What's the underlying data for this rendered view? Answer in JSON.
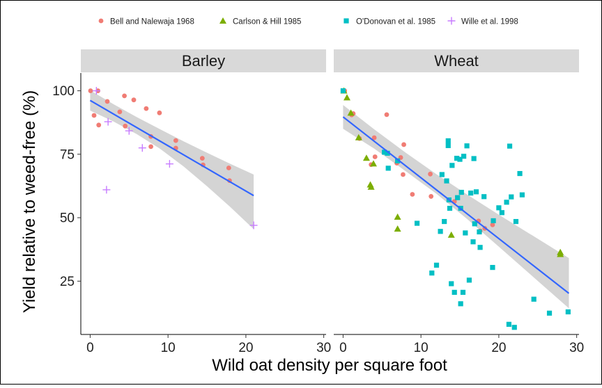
{
  "colors": {
    "bell": "#F07C74",
    "carlson": "#7CAE00",
    "odonovan": "#00BFC4",
    "wille": "#C77CFF",
    "fit_line": "#3366FF",
    "ribbon": "#BDBDBD",
    "strip": "#D9D9D9",
    "border": "#000000"
  },
  "chart_data": {
    "type": "scatter",
    "xlabel": "Wild oat density per square foot",
    "ylabel": "Yield relative to weed-free (%)",
    "xlim": [
      -1.2,
      30.3
    ],
    "ylim": [
      4,
      107
    ],
    "x_ticks": [
      0,
      10,
      20,
      30
    ],
    "y_ticks": [
      25,
      50,
      75,
      100
    ],
    "legend": {
      "placement": "top",
      "entries": [
        {
          "key": "bell",
          "label": "Bell and Nalewaja 1968",
          "marker": "circle"
        },
        {
          "key": "carlson",
          "label": "Carlson & Hill 1985",
          "marker": "triangle"
        },
        {
          "key": "odonovan",
          "label": "O'Donovan et al. 1985",
          "marker": "square"
        },
        {
          "key": "wille",
          "label": "Wille et al. 1998",
          "marker": "plus"
        }
      ]
    },
    "panels": [
      {
        "title": "Barley",
        "fit": {
          "x0": 0,
          "y0": 96.2,
          "x1": 21,
          "y1": 58.7
        },
        "ribbon": {
          "x": [
            0,
            3,
            6,
            9,
            12,
            15,
            18,
            21
          ],
          "lower": [
            92.2,
            87.9,
            82.9,
            77.1,
            70.2,
            62.4,
            54.2,
            45.5
          ],
          "upper": [
            100.2,
            94.7,
            89.6,
            84.8,
            80.1,
            75.6,
            71.2,
            67.0
          ]
        },
        "series": [
          {
            "key": "bell",
            "points": [
              [
                0.05,
                100
              ],
              [
                0.5,
                90.3
              ],
              [
                1.0,
                100
              ],
              [
                1.1,
                86.5
              ],
              [
                2.2,
                95.8
              ],
              [
                3.8,
                91.7
              ],
              [
                4.4,
                98
              ],
              [
                4.5,
                86.1
              ],
              [
                5.6,
                96.4
              ],
              [
                7.2,
                93
              ],
              [
                7.8,
                82
              ],
              [
                7.8,
                78
              ],
              [
                8.9,
                91.3
              ],
              [
                11.0,
                80.4
              ],
              [
                11.0,
                77.4
              ],
              [
                14.4,
                73.4
              ],
              [
                14.5,
                70.8
              ],
              [
                17.8,
                69.6
              ],
              [
                17.9,
                64.6
              ]
            ]
          },
          {
            "key": "wille",
            "points": [
              [
                0.8,
                100
              ],
              [
                2.1,
                61
              ],
              [
                2.3,
                87.8
              ],
              [
                5.0,
                84.2
              ],
              [
                6.7,
                77.5
              ],
              [
                10.2,
                71.2
              ],
              [
                21.0,
                47
              ]
            ]
          }
        ]
      },
      {
        "title": "Wheat",
        "fit": {
          "x0": 0,
          "y0": 89.7,
          "x1": 29,
          "y1": 20.2
        },
        "ribbon": {
          "x": [
            0,
            4,
            8,
            12,
            16,
            20,
            24,
            29
          ],
          "lower": [
            85.0,
            77.2,
            68.4,
            59.4,
            49.3,
            38.6,
            27.8,
            14.3
          ],
          "upper": [
            94.4,
            84.8,
            75.7,
            67.1,
            59.0,
            51.2,
            43.6,
            34.1
          ]
        },
        "series": [
          {
            "key": "bell",
            "points": [
              [
                0.2,
                100
              ],
              [
                1.1,
                90.5
              ],
              [
                1.3,
                91
              ],
              [
                2.1,
                81.2
              ],
              [
                3.6,
                70.9
              ],
              [
                4.0,
                81.5
              ],
              [
                4.1,
                74
              ],
              [
                5.5,
                75.6
              ],
              [
                5.6,
                90.6
              ],
              [
                6.9,
                71.5
              ],
              [
                7.4,
                73.7
              ],
              [
                7.7,
                67
              ],
              [
                7.8,
                78.8
              ],
              [
                8.9,
                59.2
              ],
              [
                11.2,
                67.2
              ],
              [
                11.3,
                58.4
              ],
              [
                14.3,
                56.4
              ],
              [
                17.4,
                48.7
              ],
              [
                17.6,
                44.8
              ],
              [
                18.2,
                45.8
              ],
              [
                19.2,
                47.2
              ]
            ]
          },
          {
            "key": "carlson",
            "points": [
              [
                0.1,
                100
              ],
              [
                0.5,
                97.3
              ],
              [
                1.0,
                91.3
              ],
              [
                2.0,
                81.6
              ],
              [
                3.0,
                73.5
              ],
              [
                3.5,
                63
              ],
              [
                3.6,
                62.1
              ],
              [
                3.9,
                71.3
              ],
              [
                7.0,
                50.3
              ],
              [
                7.0,
                45.6
              ],
              [
                13.9,
                43.2
              ],
              [
                27.9,
                36.4
              ],
              [
                27.9,
                35.6
              ]
            ]
          },
          {
            "key": "odonovan",
            "points": [
              [
                0,
                100
              ],
              [
                5.3,
                75.8
              ],
              [
                5.7,
                75.4
              ],
              [
                5.8,
                69.5
              ],
              [
                7.0,
                72.4
              ],
              [
                9.5,
                47.8
              ],
              [
                11.4,
                28.2
              ],
              [
                12.0,
                31.3
              ],
              [
                12.5,
                44.6
              ],
              [
                12.7,
                67
              ],
              [
                13,
                48.5
              ],
              [
                13.3,
                64.5
              ],
              [
                13.5,
                80.3
              ],
              [
                13.5,
                78.4
              ],
              [
                13.6,
                57
              ],
              [
                13.7,
                53.7
              ],
              [
                13.9,
                24
              ],
              [
                14.0,
                70.6
              ],
              [
                14.3,
                20.6
              ],
              [
                14.6,
                73.4
              ],
              [
                14.7,
                57.9
              ],
              [
                15,
                73
              ],
              [
                15.1,
                16.1
              ],
              [
                15.1,
                53.7
              ],
              [
                15.2,
                60
              ],
              [
                15.4,
                20.6
              ],
              [
                15.5,
                74.2
              ],
              [
                15.7,
                44
              ],
              [
                15.9,
                78.3
              ],
              [
                16.2,
                25.4
              ],
              [
                16.4,
                59.7
              ],
              [
                16.7,
                40.5
              ],
              [
                16.8,
                73.3
              ],
              [
                16.9,
                47.6
              ],
              [
                17.1,
                60.2
              ],
              [
                17.5,
                44.4
              ],
              [
                17.6,
                38.3
              ],
              [
                18.1,
                58.3
              ],
              [
                19.2,
                30.4
              ],
              [
                19.3,
                48.8
              ],
              [
                20,
                53.9
              ],
              [
                20.4,
                52
              ],
              [
                21.0,
                56.1
              ],
              [
                21.3,
                8
              ],
              [
                21.4,
                78.2
              ],
              [
                21.6,
                58.2
              ],
              [
                22.0,
                6.8
              ],
              [
                22.2,
                48.5
              ],
              [
                22.7,
                67.4
              ],
              [
                23.0,
                59
              ],
              [
                24.5,
                17.9
              ],
              [
                26.5,
                12.4
              ],
              [
                28.9,
                12.9
              ]
            ]
          }
        ]
      }
    ]
  }
}
